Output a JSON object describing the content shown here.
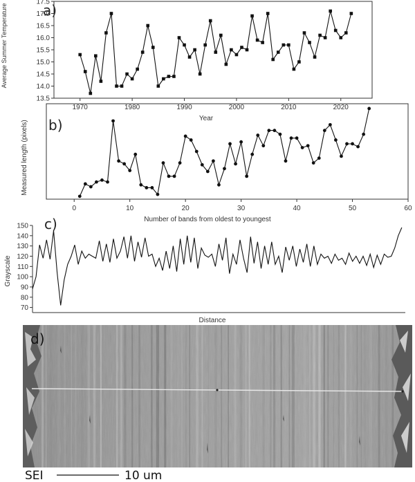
{
  "chart_data": [
    {
      "type": "line",
      "panel": "a)",
      "xlabel": "Year",
      "ylabel": "Average Summer Temperature",
      "xlim": [
        1965,
        2026
      ],
      "ylim": [
        13.5,
        17.5
      ],
      "xticks": [
        1970,
        1980,
        1990,
        2000,
        2010,
        2020
      ],
      "yticks": [
        13.5,
        14.0,
        14.5,
        15.0,
        15.5,
        16.0,
        16.5,
        17.0,
        17.5
      ],
      "marker": "square",
      "x": [
        1970,
        1971,
        1972,
        1973,
        1974,
        1975,
        1976,
        1977,
        1978,
        1979,
        1980,
        1981,
        1982,
        1983,
        1984,
        1985,
        1986,
        1987,
        1988,
        1989,
        1990,
        1991,
        1992,
        1993,
        1994,
        1995,
        1996,
        1997,
        1998,
        1999,
        2000,
        2001,
        2002,
        2003,
        2004,
        2005,
        2006,
        2007,
        2008,
        2009,
        2010,
        2011,
        2012,
        2013,
        2014,
        2015,
        2016,
        2017,
        2018,
        2019,
        2020,
        2021,
        2022
      ],
      "y": [
        15.3,
        14.6,
        13.7,
        15.25,
        14.2,
        16.2,
        17.0,
        14.0,
        14.0,
        14.5,
        14.3,
        14.7,
        15.4,
        16.5,
        15.6,
        14.0,
        14.3,
        14.4,
        14.4,
        16.0,
        15.7,
        15.2,
        15.5,
        14.5,
        15.7,
        16.7,
        15.4,
        16.1,
        14.9,
        15.5,
        15.3,
        15.6,
        15.5,
        16.9,
        15.9,
        15.8,
        17.0,
        15.1,
        15.4,
        15.7,
        15.7,
        14.7,
        15.0,
        16.2,
        15.8,
        15.2,
        16.1,
        16.0,
        17.1,
        16.3,
        16.0,
        16.2,
        17.0
      ]
    },
    {
      "type": "line",
      "panel": "b)",
      "xlabel": "Number of bands from oldest to youngest",
      "ylabel": "Measured length (pixels)",
      "xlim": [
        -5,
        60
      ],
      "ylim": [
        0,
        100
      ],
      "xticks": [
        0,
        10,
        20,
        30,
        40,
        50,
        60
      ],
      "yticks": [],
      "marker": "circle",
      "x": [
        1,
        2,
        3,
        4,
        5,
        6,
        7,
        8,
        9,
        10,
        11,
        12,
        13,
        14,
        15,
        16,
        17,
        18,
        19,
        20,
        21,
        22,
        23,
        24,
        25,
        26,
        27,
        28,
        29,
        30,
        31,
        32,
        33,
        34,
        35,
        36,
        37,
        38,
        39,
        40,
        41,
        42,
        43,
        44,
        45,
        46,
        47,
        48,
        49,
        50,
        51,
        52,
        53
      ],
      "y": [
        3,
        16,
        13,
        18,
        20,
        18,
        82,
        40,
        37,
        30,
        47,
        15,
        12,
        12,
        5,
        38,
        24,
        24,
        38,
        66,
        62,
        50,
        36,
        29,
        40,
        15,
        32,
        58,
        37,
        60,
        24,
        47,
        67,
        56,
        72,
        72,
        68,
        40,
        64,
        64,
        54,
        56,
        38,
        43,
        72,
        78,
        62,
        45,
        58,
        58,
        55,
        68,
        95
      ]
    },
    {
      "type": "line",
      "panel": "c)",
      "xlabel": "Distance",
      "ylabel": "Grayscale",
      "xlim": [
        0,
        106
      ],
      "ylim": [
        65,
        150
      ],
      "xticks": [],
      "yticks": [
        70,
        80,
        90,
        100,
        110,
        120,
        130,
        140,
        150
      ],
      "x": [
        0,
        1,
        2,
        3,
        4,
        5,
        6,
        7,
        8,
        9,
        10,
        11,
        12,
        13,
        14,
        15,
        16,
        17,
        18,
        19,
        20,
        21,
        22,
        23,
        24,
        25,
        26,
        27,
        28,
        29,
        30,
        31,
        32,
        33,
        34,
        35,
        36,
        37,
        38,
        39,
        40,
        41,
        42,
        43,
        44,
        45,
        46,
        47,
        48,
        49,
        50,
        51,
        52,
        53,
        54,
        55,
        56,
        57,
        58,
        59,
        60,
        61,
        62,
        63,
        64,
        65,
        66,
        67,
        68,
        69,
        70,
        71,
        72,
        73,
        74,
        75,
        76,
        77,
        78,
        79,
        80,
        81,
        82,
        83,
        84,
        85,
        86,
        87,
        88,
        89,
        90,
        91,
        92,
        93,
        94,
        95,
        96,
        97,
        98,
        99,
        100,
        101,
        102,
        103,
        104,
        105
      ],
      "y": [
        88,
        100,
        131,
        118,
        136,
        117,
        145,
        104,
        72,
        97,
        112,
        120,
        131,
        112,
        125,
        118,
        122,
        120,
        118,
        135,
        115,
        132,
        114,
        137,
        118,
        125,
        139,
        118,
        140,
        115,
        134,
        119,
        138,
        120,
        122,
        110,
        118,
        106,
        125,
        108,
        130,
        105,
        137,
        112,
        140,
        114,
        138,
        108,
        128,
        121,
        119,
        122,
        110,
        132,
        116,
        138,
        103,
        122,
        112,
        136,
        118,
        104,
        139,
        113,
        134,
        108,
        130,
        112,
        134,
        112,
        120,
        104,
        129,
        116,
        130,
        110,
        127,
        114,
        132,
        110,
        130,
        112,
        122,
        118,
        120,
        113,
        122,
        116,
        118,
        112,
        123,
        115,
        120,
        113,
        120,
        111,
        122,
        109,
        121,
        112,
        122,
        119,
        120,
        128,
        140,
        148
      ]
    }
  ],
  "micrograph": {
    "panel": "d)",
    "detector_label": "SEI",
    "scale_label": "10 um"
  }
}
